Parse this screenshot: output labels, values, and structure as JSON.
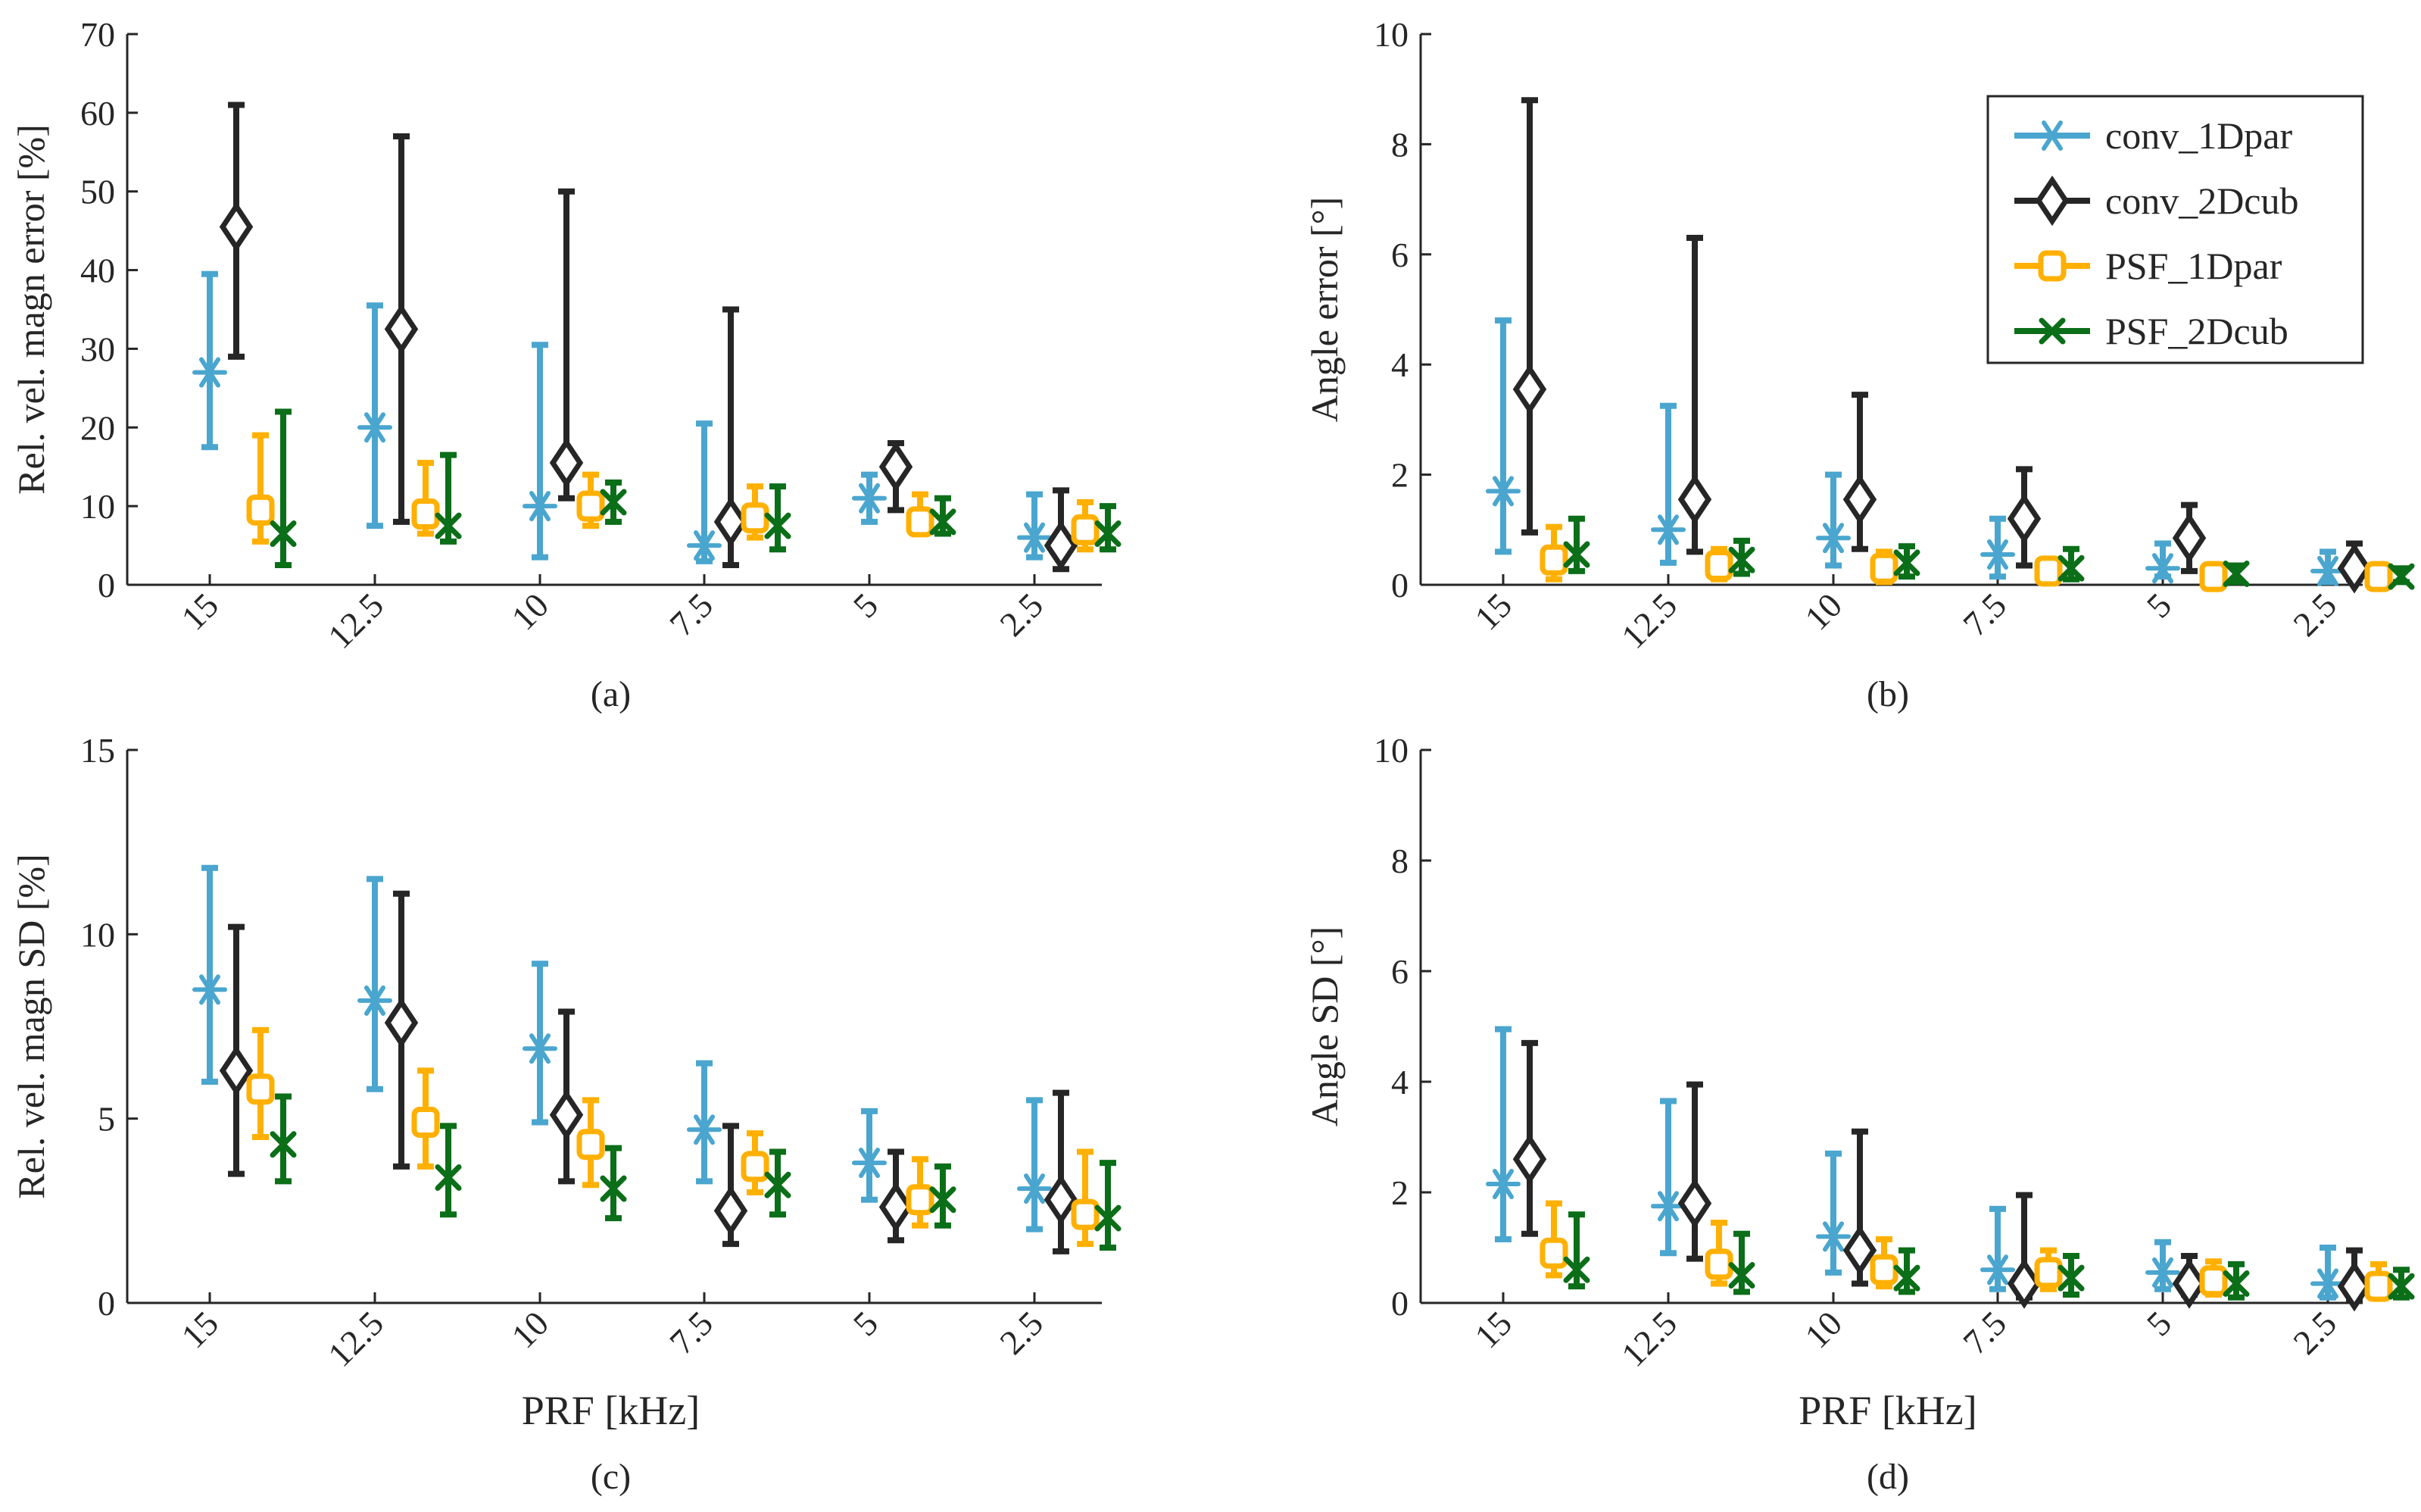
{
  "figure": {
    "colors": {
      "conv_1Dpar": "#4aa6cf",
      "conv_2Dcub": "#262626",
      "PSF_1Dpar": "#ffb000",
      "PSF_2Dcub": "#0b6e18",
      "axis": "#262626"
    }
  },
  "chart_data": [
    {
      "id": "a",
      "type": "scatter",
      "panel_label": "(a)",
      "xlabel": "",
      "ylabel": "Rel. vel. magn error [%]",
      "categories": [
        "15",
        "12.5",
        "10",
        "7.5",
        "5",
        "2.5"
      ],
      "ylim": [
        0,
        70
      ],
      "yticks": [
        0,
        10,
        20,
        30,
        40,
        50,
        60,
        70
      ],
      "legend": null,
      "series": [
        {
          "name": "conv_1Dpar",
          "marker": "asterisk",
          "values": [
            27,
            20,
            10,
            5,
            11,
            6
          ],
          "lower": [
            17.5,
            7.5,
            3.5,
            3,
            8,
            3.5
          ],
          "upper": [
            39.5,
            35.5,
            30.5,
            20.5,
            14,
            11.5
          ]
        },
        {
          "name": "conv_2Dcub",
          "marker": "diamond",
          "values": [
            45.5,
            32.5,
            15.5,
            8,
            15,
            5
          ],
          "lower": [
            29,
            8,
            11,
            2.5,
            9.5,
            2
          ],
          "upper": [
            61,
            57,
            50,
            35,
            18,
            12
          ]
        },
        {
          "name": "PSF_1Dpar",
          "marker": "square",
          "values": [
            9.5,
            9,
            10,
            8.5,
            8,
            7
          ],
          "lower": [
            5.5,
            6.5,
            7.5,
            6,
            6.5,
            4.5
          ],
          "upper": [
            19,
            15.5,
            14,
            12.5,
            11.5,
            10.5
          ]
        },
        {
          "name": "PSF_2Dcub",
          "marker": "x",
          "values": [
            6.5,
            7.5,
            10.5,
            7.5,
            8,
            6.5
          ],
          "lower": [
            2.5,
            5.5,
            8,
            4.5,
            6.5,
            4.5
          ],
          "upper": [
            22,
            16.5,
            13,
            12.5,
            11,
            10
          ]
        }
      ]
    },
    {
      "id": "b",
      "type": "scatter",
      "panel_label": "(b)",
      "xlabel": "",
      "ylabel": "Angle error [°]",
      "categories": [
        "15",
        "12.5",
        "10",
        "7.5",
        "5",
        "2.5"
      ],
      "ylim": [
        0,
        10
      ],
      "yticks": [
        0,
        2,
        4,
        6,
        8,
        10
      ],
      "legend": {
        "position": "top-right",
        "entries": [
          "conv_1Dpar",
          "conv_2Dcub",
          "PSF_1Dpar",
          "PSF_2Dcub"
        ]
      },
      "series": [
        {
          "name": "conv_1Dpar",
          "marker": "asterisk",
          "values": [
            1.7,
            1.0,
            0.85,
            0.55,
            0.3,
            0.25
          ],
          "lower": [
            0.6,
            0.4,
            0.35,
            0.15,
            0.15,
            0.05
          ],
          "upper": [
            4.8,
            3.25,
            2.0,
            1.2,
            0.75,
            0.6
          ]
        },
        {
          "name": "conv_2Dcub",
          "marker": "diamond",
          "values": [
            3.55,
            1.55,
            1.55,
            1.2,
            0.85,
            0.3
          ],
          "lower": [
            0.95,
            0.6,
            0.65,
            0.35,
            0.25,
            0.1
          ],
          "upper": [
            8.8,
            6.3,
            3.45,
            2.1,
            1.45,
            0.75
          ]
        },
        {
          "name": "PSF_1Dpar",
          "marker": "square",
          "values": [
            0.45,
            0.35,
            0.3,
            0.25,
            0.15,
            0.15
          ],
          "lower": [
            0.1,
            0.1,
            0.05,
            0.05,
            0.05,
            0.05
          ],
          "upper": [
            1.05,
            0.65,
            0.6,
            0.45,
            0.35,
            0.35
          ]
        },
        {
          "name": "PSF_2Dcub",
          "marker": "x",
          "values": [
            0.55,
            0.45,
            0.4,
            0.3,
            0.2,
            0.15
          ],
          "lower": [
            0.25,
            0.2,
            0.15,
            0.1,
            0.05,
            0.05
          ],
          "upper": [
            1.2,
            0.8,
            0.7,
            0.65,
            0.35,
            0.3
          ]
        }
      ]
    },
    {
      "id": "c",
      "type": "scatter",
      "panel_label": "(c)",
      "xlabel": "PRF [kHz]",
      "ylabel": "Rel. vel. magn SD [%]",
      "categories": [
        "15",
        "12.5",
        "10",
        "7.5",
        "5",
        "2.5"
      ],
      "ylim": [
        0,
        15
      ],
      "yticks": [
        0,
        5,
        10,
        15
      ],
      "legend": null,
      "series": [
        {
          "name": "conv_1Dpar",
          "marker": "asterisk",
          "values": [
            8.5,
            8.2,
            6.9,
            4.7,
            3.8,
            3.1
          ],
          "lower": [
            6.0,
            5.8,
            4.9,
            3.3,
            2.8,
            2.0
          ],
          "upper": [
            11.8,
            11.5,
            9.2,
            6.5,
            5.2,
            5.5
          ]
        },
        {
          "name": "conv_2Dcub",
          "marker": "diamond",
          "values": [
            6.3,
            7.6,
            5.1,
            2.5,
            2.6,
            2.8
          ],
          "lower": [
            3.5,
            3.7,
            3.3,
            1.6,
            1.7,
            1.4
          ],
          "upper": [
            10.2,
            11.1,
            7.9,
            4.8,
            4.1,
            5.7
          ]
        },
        {
          "name": "PSF_1Dpar",
          "marker": "square",
          "values": [
            5.8,
            4.9,
            4.3,
            3.7,
            2.8,
            2.4
          ],
          "lower": [
            4.5,
            3.7,
            3.2,
            3.0,
            2.1,
            1.6
          ],
          "upper": [
            7.4,
            6.3,
            5.5,
            4.6,
            3.9,
            4.1
          ]
        },
        {
          "name": "PSF_2Dcub",
          "marker": "x",
          "values": [
            4.3,
            3.4,
            3.1,
            3.2,
            2.8,
            2.3
          ],
          "lower": [
            3.3,
            2.4,
            2.3,
            2.4,
            2.1,
            1.5
          ],
          "upper": [
            5.6,
            4.8,
            4.2,
            4.1,
            3.7,
            3.8
          ]
        }
      ]
    },
    {
      "id": "d",
      "type": "scatter",
      "panel_label": "(d)",
      "xlabel": "PRF [kHz]",
      "ylabel": "Angle SD [°]",
      "categories": [
        "15",
        "12.5",
        "10",
        "7.5",
        "5",
        "2.5"
      ],
      "ylim": [
        0,
        10
      ],
      "yticks": [
        0,
        2,
        4,
        6,
        8,
        10
      ],
      "legend": null,
      "series": [
        {
          "name": "conv_1Dpar",
          "marker": "asterisk",
          "values": [
            2.15,
            1.75,
            1.2,
            0.6,
            0.55,
            0.35
          ],
          "lower": [
            1.15,
            0.9,
            0.55,
            0.25,
            0.25,
            0.1
          ],
          "upper": [
            4.95,
            3.65,
            2.7,
            1.7,
            1.1,
            1.0
          ]
        },
        {
          "name": "conv_2Dcub",
          "marker": "diamond",
          "values": [
            2.6,
            1.8,
            0.95,
            0.35,
            0.35,
            0.3
          ],
          "lower": [
            1.25,
            0.8,
            0.35,
            0.1,
            0.15,
            0.05
          ],
          "upper": [
            4.7,
            3.95,
            3.1,
            1.95,
            0.85,
            0.95
          ]
        },
        {
          "name": "PSF_1Dpar",
          "marker": "square",
          "values": [
            0.9,
            0.7,
            0.6,
            0.55,
            0.4,
            0.3
          ],
          "lower": [
            0.5,
            0.35,
            0.3,
            0.25,
            0.15,
            0.1
          ],
          "upper": [
            1.8,
            1.45,
            1.15,
            0.95,
            0.75,
            0.7
          ]
        },
        {
          "name": "PSF_2Dcub",
          "marker": "x",
          "values": [
            0.6,
            0.5,
            0.45,
            0.45,
            0.35,
            0.3
          ],
          "lower": [
            0.3,
            0.2,
            0.2,
            0.15,
            0.1,
            0.1
          ],
          "upper": [
            1.6,
            1.25,
            0.95,
            0.85,
            0.7,
            0.6
          ]
        }
      ]
    }
  ]
}
